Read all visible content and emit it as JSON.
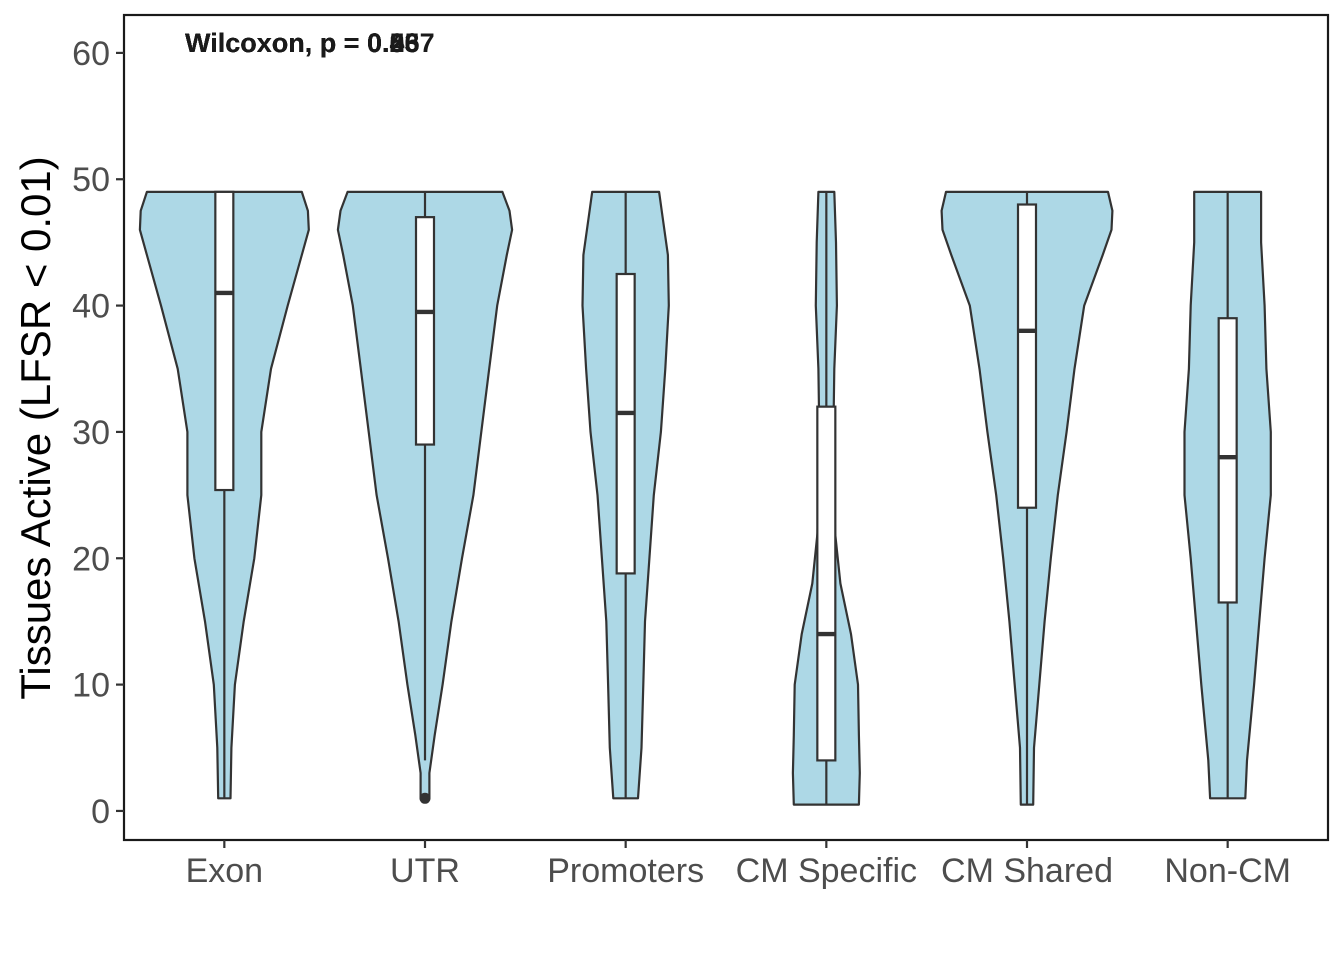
{
  "chart_data": {
    "type": "violin",
    "ylabel": "Tissues Active (LFSR < 0.01)",
    "xlabel": "",
    "ylim": [
      -2.3,
      63
    ],
    "yticks": [
      0,
      10,
      20,
      30,
      40,
      50,
      60
    ],
    "categories": [
      "Exon",
      "UTR",
      "Promoters",
      "CM Specific",
      "CM Shared",
      "Non-CM"
    ],
    "fill_color": "#add8e6",
    "line_color": "#333333",
    "annotations": [
      "Wilcoxon, p = 0.037",
      "Wilcoxon, p = 0.46",
      "Wilcoxon, p = 0.55",
      "Wilcoxon, p = 0.26",
      "Wilcoxon, p = 0.5"
    ],
    "groups": [
      {
        "name": "Exon",
        "box": {
          "min": 1,
          "q1": 25.4,
          "median": 41,
          "q3": 49,
          "max": 49
        },
        "outliers": [],
        "density": [
          [
            1,
            0.07
          ],
          [
            5,
            0.08
          ],
          [
            10,
            0.12
          ],
          [
            15,
            0.22
          ],
          [
            20,
            0.34
          ],
          [
            25,
            0.42
          ],
          [
            30,
            0.42
          ],
          [
            35,
            0.53
          ],
          [
            40,
            0.72
          ],
          [
            44,
            0.88
          ],
          [
            46,
            0.96
          ],
          [
            47.5,
            0.95
          ],
          [
            49,
            0.88
          ]
        ]
      },
      {
        "name": "UTR",
        "box": {
          "min": 4,
          "q1": 29,
          "median": 39.5,
          "q3": 47,
          "max": 49
        },
        "outliers": [
          1
        ],
        "density": [
          [
            1,
            0.05
          ],
          [
            3,
            0.05
          ],
          [
            6,
            0.11
          ],
          [
            10,
            0.2
          ],
          [
            15,
            0.3
          ],
          [
            20,
            0.42
          ],
          [
            25,
            0.55
          ],
          [
            30,
            0.64
          ],
          [
            35,
            0.73
          ],
          [
            40,
            0.82
          ],
          [
            44,
            0.93
          ],
          [
            46,
            0.99
          ],
          [
            47.5,
            0.96
          ],
          [
            49,
            0.88
          ]
        ]
      },
      {
        "name": "Promoters",
        "box": {
          "min": 1,
          "q1": 18.8,
          "median": 31.5,
          "q3": 42.5,
          "max": 49
        },
        "outliers": [],
        "density": [
          [
            1,
            0.14
          ],
          [
            5,
            0.18
          ],
          [
            10,
            0.2
          ],
          [
            15,
            0.22
          ],
          [
            20,
            0.27
          ],
          [
            25,
            0.32
          ],
          [
            30,
            0.4
          ],
          [
            35,
            0.45
          ],
          [
            40,
            0.49
          ],
          [
            44,
            0.48
          ],
          [
            47,
            0.42
          ],
          [
            49,
            0.38
          ]
        ]
      },
      {
        "name": "CM Specific",
        "box": {
          "min": 0.5,
          "q1": 4,
          "median": 14,
          "q3": 32,
          "max": 49
        },
        "outliers": [],
        "density": [
          [
            0.5,
            0.37
          ],
          [
            3,
            0.38
          ],
          [
            6,
            0.37
          ],
          [
            10,
            0.36
          ],
          [
            14,
            0.28
          ],
          [
            18,
            0.16
          ],
          [
            22,
            0.1
          ],
          [
            26,
            0.09
          ],
          [
            30,
            0.08
          ],
          [
            35,
            0.09
          ],
          [
            40,
            0.12
          ],
          [
            45,
            0.11
          ],
          [
            49,
            0.09
          ]
        ]
      },
      {
        "name": "CM Shared",
        "box": {
          "min": 0.5,
          "q1": 24,
          "median": 38,
          "q3": 48,
          "max": 49
        },
        "outliers": [],
        "density": [
          [
            0.5,
            0.07
          ],
          [
            5,
            0.08
          ],
          [
            10,
            0.14
          ],
          [
            15,
            0.2
          ],
          [
            20,
            0.27
          ],
          [
            25,
            0.35
          ],
          [
            30,
            0.45
          ],
          [
            35,
            0.54
          ],
          [
            40,
            0.65
          ],
          [
            44,
            0.86
          ],
          [
            46,
            0.96
          ],
          [
            47.5,
            0.97
          ],
          [
            49,
            0.92
          ]
        ]
      },
      {
        "name": "Non-CM",
        "box": {
          "min": 1,
          "q1": 16.5,
          "median": 28,
          "q3": 39,
          "max": 49
        },
        "outliers": [],
        "density": [
          [
            1,
            0.2
          ],
          [
            4,
            0.22
          ],
          [
            10,
            0.3
          ],
          [
            15,
            0.36
          ],
          [
            20,
            0.42
          ],
          [
            25,
            0.49
          ],
          [
            30,
            0.49
          ],
          [
            35,
            0.44
          ],
          [
            40,
            0.42
          ],
          [
            45,
            0.38
          ],
          [
            49,
            0.38
          ]
        ]
      }
    ]
  }
}
